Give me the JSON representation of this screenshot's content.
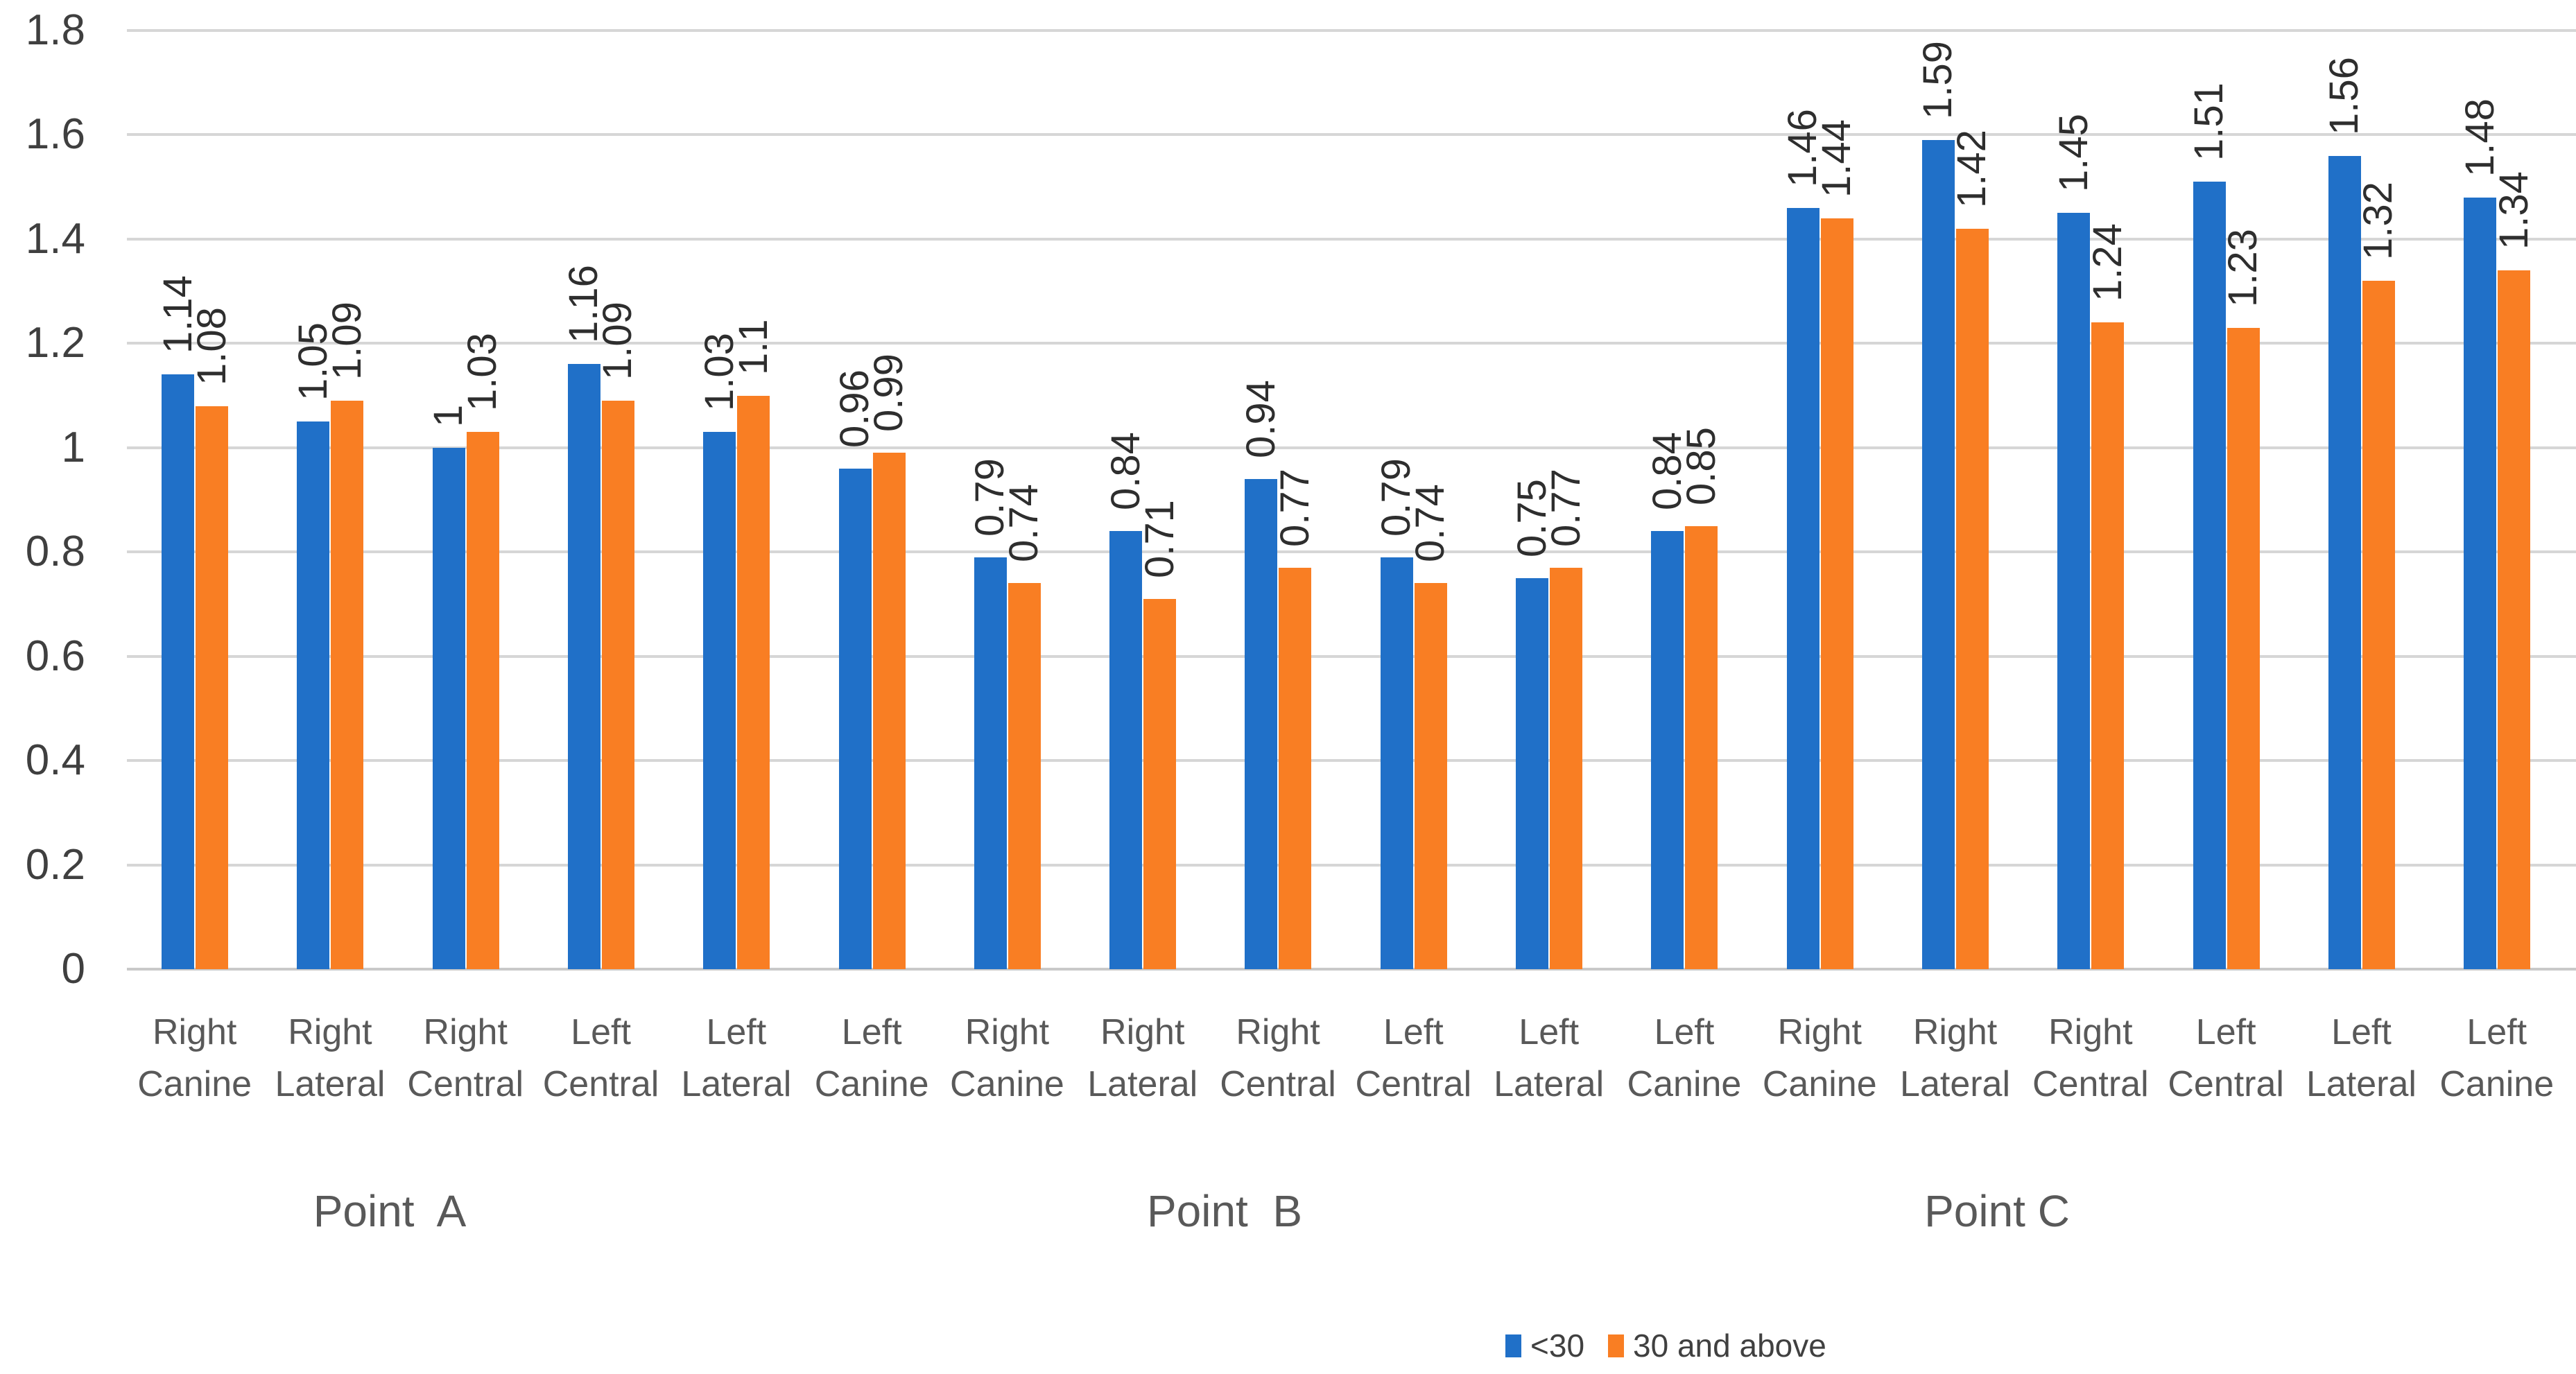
{
  "chart_data": {
    "type": "bar",
    "title": "",
    "grid": true,
    "legend_position": "bottom",
    "y_axis": {
      "min": 0,
      "max": 1.8,
      "tick_step": 0.2,
      "tick_labels": [
        "0",
        "0.2",
        "0.4",
        "0.6",
        "0.8",
        "1",
        "1.2",
        "1.4",
        "1.6",
        "1.8"
      ]
    },
    "group_labels": [
      "Point  A",
      "Point  B",
      "Point C"
    ],
    "categories": [
      {
        "top": "Right",
        "bottom": "Canine"
      },
      {
        "top": "Right",
        "bottom": "Lateral"
      },
      {
        "top": "Right",
        "bottom": "Central"
      },
      {
        "top": "Left",
        "bottom": "Central"
      },
      {
        "top": "Left",
        "bottom": "Lateral"
      },
      {
        "top": "Left",
        "bottom": "Canine"
      },
      {
        "top": "Right",
        "bottom": "Canine"
      },
      {
        "top": "Right",
        "bottom": "Lateral"
      },
      {
        "top": "Right",
        "bottom": "Central"
      },
      {
        "top": "Left",
        "bottom": "Central"
      },
      {
        "top": "Left",
        "bottom": "Lateral"
      },
      {
        "top": "Left",
        "bottom": "Canine"
      },
      {
        "top": "Right",
        "bottom": "Canine"
      },
      {
        "top": "Right",
        "bottom": "Lateral"
      },
      {
        "top": "Right",
        "bottom": "Central"
      },
      {
        "top": "Left",
        "bottom": "Central"
      },
      {
        "top": "Left",
        "bottom": "Lateral"
      },
      {
        "top": "Left",
        "bottom": "Canine"
      }
    ],
    "series": [
      {
        "name": "<30",
        "color": "#2070C8",
        "values": [
          1.14,
          1.05,
          1,
          1.16,
          1.03,
          0.96,
          0.79,
          0.84,
          0.94,
          0.79,
          0.75,
          0.84,
          1.46,
          1.59,
          1.45,
          1.51,
          1.56,
          1.48
        ],
        "labels": [
          "1.14",
          "1.05",
          "1",
          "1.16",
          "1.03",
          "0.96",
          "0.79",
          "0.84",
          "0.94",
          "0.79",
          "0.75",
          "0.84",
          "1.46",
          "1.59",
          "1.45",
          "1.51",
          "1.56",
          "1.48"
        ]
      },
      {
        "name": "30 and above",
        "color": "#F97E23",
        "values": [
          1.08,
          1.09,
          1.03,
          1.09,
          1.1,
          0.99,
          0.74,
          0.71,
          0.77,
          0.74,
          0.77,
          0.85,
          1.44,
          1.42,
          1.24,
          1.23,
          1.32,
          1.34
        ],
        "labels": [
          "1.08",
          "1.09",
          "1.03",
          "1.09",
          "1.1",
          "0.99",
          "0.74",
          "0.71",
          "0.77",
          "0.74",
          "0.77",
          "0.85",
          "1.44",
          "1.42",
          "1.24",
          "1.23",
          "1.32",
          "1.34"
        ]
      }
    ],
    "colors": {
      "gridline": "#d6d6d6",
      "axis_text": "#3f3f3f",
      "category_text": "#595959",
      "data_label_text": "#2e2e2e"
    }
  }
}
